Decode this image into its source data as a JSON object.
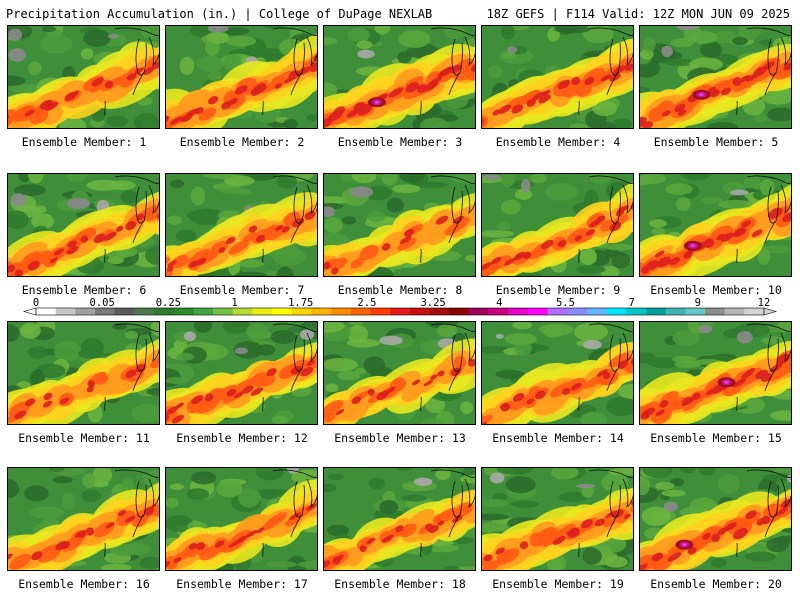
{
  "header": {
    "title": "Precipitation Accumulation (in.) | College of DuPage NEXLAB",
    "run_info": "18Z GEFS | F114 Valid: 12Z MON JUN 09 2025"
  },
  "colorbar": {
    "ticks": [
      "0",
      "0.05",
      "0.25",
      "1",
      "1.75",
      "2.5",
      "3.25",
      "4",
      "5.5",
      "7",
      "9",
      "12"
    ],
    "colors": [
      "#ffffff",
      "#c8c8c8",
      "#a0a0a0",
      "#787878",
      "#5a5a5a",
      "#4a7a4a",
      "#2f7a2f",
      "#2a8c2a",
      "#3fa53f",
      "#76c043",
      "#b7dc2d",
      "#eded12",
      "#ffff00",
      "#ffd700",
      "#ffb400",
      "#ff8c00",
      "#ff6400",
      "#ff3c00",
      "#e61919",
      "#c80f0f",
      "#a50a0a",
      "#8b0000",
      "#a0005a",
      "#c80080",
      "#e600c8",
      "#ff00ff",
      "#b469ff",
      "#8c8cff",
      "#64b4ff",
      "#00e6ff",
      "#00c8c8",
      "#00a0a0",
      "#3cb4b4",
      "#64c8c8",
      "#8c8c8c",
      "#b4b4b4",
      "#d2d2d2"
    ]
  },
  "members": [
    {
      "label": "Ensemble Member: 1",
      "intensity": 0.75
    },
    {
      "label": "Ensemble Member: 2",
      "intensity": 0.8
    },
    {
      "label": "Ensemble Member: 3",
      "intensity": 0.95
    },
    {
      "label": "Ensemble Member: 4",
      "intensity": 0.8
    },
    {
      "label": "Ensemble Member: 5",
      "intensity": 0.85
    },
    {
      "label": "Ensemble Member: 6",
      "intensity": 0.7
    },
    {
      "label": "Ensemble Member: 7",
      "intensity": 0.65
    },
    {
      "label": "Ensemble Member: 8",
      "intensity": 0.55
    },
    {
      "label": "Ensemble Member: 9",
      "intensity": 0.6
    },
    {
      "label": "Ensemble Member: 10",
      "intensity": 0.85
    },
    {
      "label": "Ensemble Member: 11",
      "intensity": 0.55
    },
    {
      "label": "Ensemble Member: 12",
      "intensity": 0.75
    },
    {
      "label": "Ensemble Member: 13",
      "intensity": 0.5
    },
    {
      "label": "Ensemble Member: 14",
      "intensity": 0.65
    },
    {
      "label": "Ensemble Member: 15",
      "intensity": 0.85
    },
    {
      "label": "Ensemble Member: 16",
      "intensity": 0.7
    },
    {
      "label": "Ensemble Member: 17",
      "intensity": 0.7
    },
    {
      "label": "Ensemble Member: 18",
      "intensity": 0.55
    },
    {
      "label": "Ensemble Member: 19",
      "intensity": 0.75
    },
    {
      "label": "Ensemble Member: 20",
      "intensity": 0.85
    }
  ]
}
